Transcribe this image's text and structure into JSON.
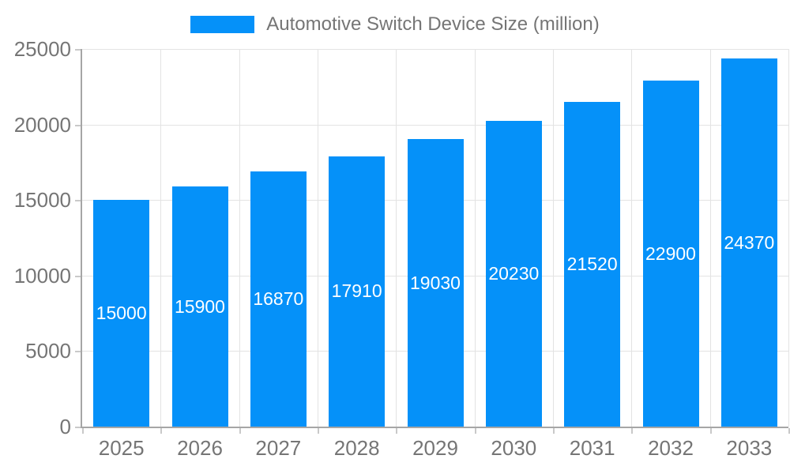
{
  "chart_data": {
    "type": "bar",
    "legend": "Automotive Switch Device Size (million)",
    "legend_position": "top",
    "categories": [
      "2025",
      "2026",
      "2027",
      "2028",
      "2029",
      "2030",
      "2031",
      "2032",
      "2033"
    ],
    "values": [
      15000,
      15900,
      16870,
      17910,
      19030,
      20230,
      21520,
      22900,
      24370
    ],
    "value_labels": [
      "15000",
      "15900",
      "16870",
      "17910",
      "19030",
      "20230",
      "21520",
      "22900",
      "24370"
    ],
    "ylim": [
      0,
      25000
    ],
    "ytick_values": [
      0,
      5000,
      10000,
      15000,
      20000,
      25000
    ],
    "ytick_labels": [
      "0",
      "5000",
      "10000",
      "15000",
      "20000",
      "25000"
    ],
    "grid": true,
    "xlabel": "",
    "ylabel": ""
  },
  "colors": {
    "bar": "#0591f9",
    "value_label": "#ffffff",
    "axis_text": "#757575",
    "gridline": "#e3e3e3",
    "axis_line": "#a6a6a6",
    "tick": "#c9c9c9",
    "background": "#ffffff"
  }
}
